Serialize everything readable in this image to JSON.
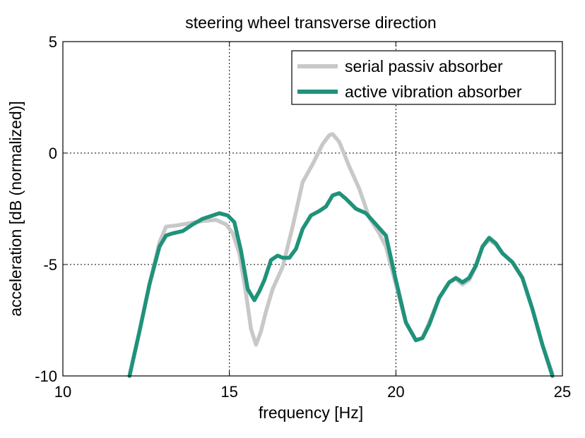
{
  "chart_data": {
    "type": "line",
    "title": "steering wheel transverse direction",
    "xlabel": "frequency [Hz]",
    "ylabel": "acceleration [dB (normalized)]",
    "xlim": [
      10,
      25
    ],
    "ylim": [
      -10,
      5
    ],
    "xticks": [
      10,
      15,
      20,
      25
    ],
    "yticks": [
      -10,
      -5,
      0,
      5
    ],
    "xtick_labels": [
      "10",
      "15",
      "20",
      "25"
    ],
    "ytick_labels": [
      "-10",
      "-5",
      "0",
      "5"
    ],
    "grid": true,
    "legend_position": "top-right",
    "series": [
      {
        "name": "serial passiv absorber",
        "color": "#c8c8c8",
        "x": [
          12.0,
          12.3,
          12.6,
          12.9,
          13.1,
          13.4,
          13.8,
          14.2,
          14.6,
          14.9,
          15.1,
          15.3,
          15.5,
          15.65,
          15.8,
          15.95,
          16.1,
          16.3,
          16.6,
          16.9,
          17.2,
          17.5,
          17.8,
          18.0,
          18.1,
          18.3,
          18.6,
          18.9,
          19.2,
          19.5,
          19.7,
          20.0,
          20.3,
          20.6,
          20.8,
          21.0,
          21.3,
          21.6,
          21.8,
          22.0,
          22.2,
          22.4,
          22.6,
          22.8,
          23.0,
          23.2,
          23.5,
          23.8,
          24.1,
          24.4,
          24.7
        ],
        "y": [
          -10.0,
          -8.0,
          -5.9,
          -4.0,
          -3.3,
          -3.25,
          -3.15,
          -3.05,
          -3.0,
          -3.2,
          -3.6,
          -4.5,
          -6.3,
          -7.9,
          -8.6,
          -8.0,
          -7.1,
          -6.1,
          -5.1,
          -3.3,
          -1.3,
          -0.5,
          0.4,
          0.8,
          0.85,
          0.5,
          -0.6,
          -1.6,
          -2.9,
          -3.6,
          -4.2,
          -5.9,
          -7.6,
          -8.4,
          -8.3,
          -7.6,
          -6.5,
          -5.8,
          -5.65,
          -5.9,
          -5.7,
          -5.1,
          -4.2,
          -3.9,
          -4.1,
          -4.5,
          -4.9,
          -5.6,
          -7.0,
          -8.6,
          -9.9
        ]
      },
      {
        "name": "active vibration absorber",
        "color": "#1f927a",
        "x": [
          12.0,
          12.3,
          12.6,
          12.9,
          13.1,
          13.3,
          13.6,
          13.9,
          14.2,
          14.5,
          14.7,
          14.95,
          15.15,
          15.35,
          15.55,
          15.75,
          15.9,
          16.05,
          16.25,
          16.45,
          16.6,
          16.8,
          17.0,
          17.2,
          17.45,
          17.7,
          17.9,
          18.1,
          18.3,
          18.5,
          18.8,
          19.1,
          19.4,
          19.7,
          20.0,
          20.3,
          20.6,
          20.8,
          21.0,
          21.3,
          21.6,
          21.8,
          22.0,
          22.2,
          22.4,
          22.6,
          22.8,
          23.0,
          23.2,
          23.5,
          23.8,
          24.1,
          24.4,
          24.7
        ],
        "y": [
          -10.0,
          -8.0,
          -5.9,
          -4.2,
          -3.7,
          -3.6,
          -3.5,
          -3.2,
          -2.95,
          -2.8,
          -2.7,
          -2.8,
          -3.1,
          -4.4,
          -6.1,
          -6.6,
          -6.2,
          -5.7,
          -4.8,
          -4.6,
          -4.7,
          -4.7,
          -4.3,
          -3.4,
          -2.8,
          -2.6,
          -2.4,
          -1.9,
          -1.8,
          -2.05,
          -2.5,
          -2.7,
          -3.2,
          -3.7,
          -5.7,
          -7.6,
          -8.4,
          -8.3,
          -7.7,
          -6.5,
          -5.8,
          -5.6,
          -5.8,
          -5.6,
          -5.05,
          -4.2,
          -3.8,
          -4.05,
          -4.5,
          -4.9,
          -5.6,
          -7.0,
          -8.6,
          -10.0
        ]
      }
    ]
  }
}
